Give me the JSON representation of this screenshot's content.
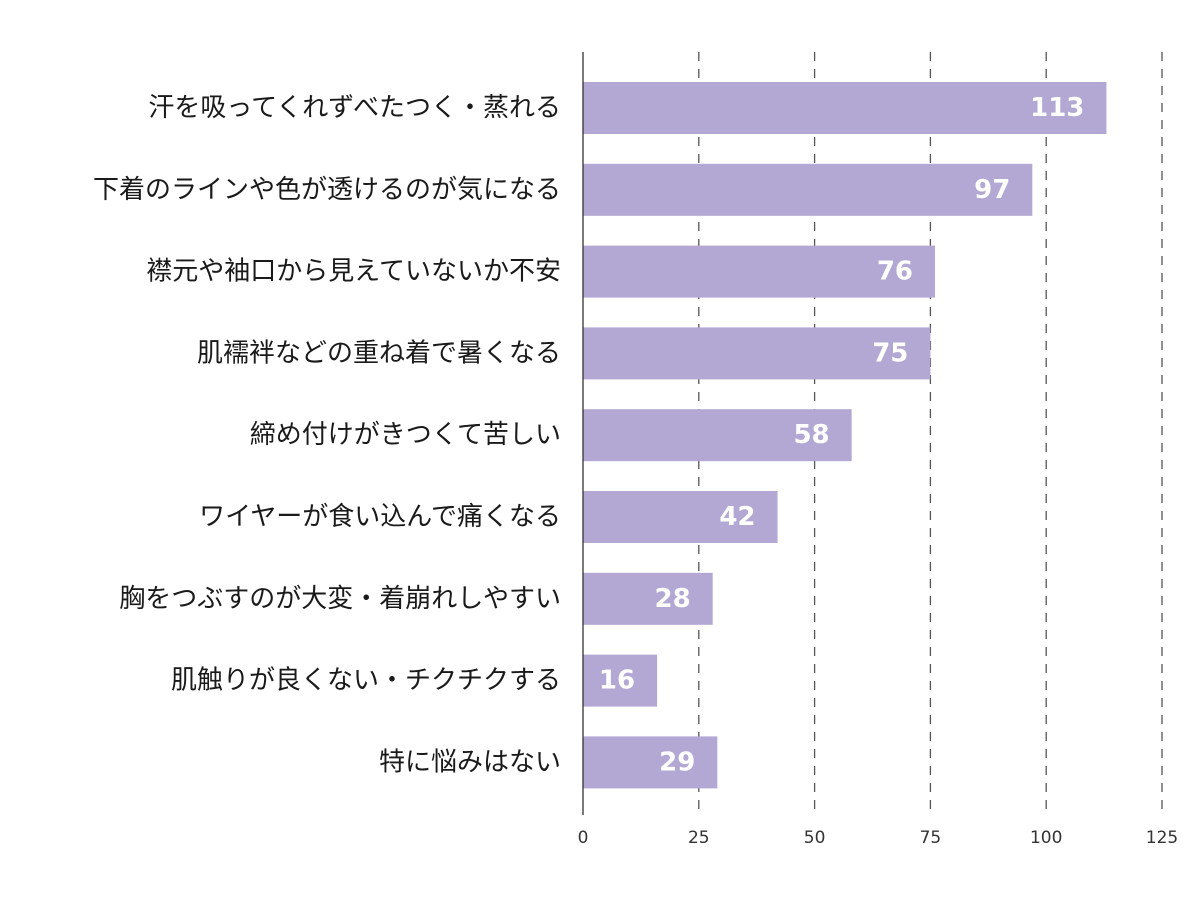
{
  "chart_data": {
    "type": "bar",
    "orientation": "horizontal",
    "categories": [
      "汗を吸ってくれずべたつく・蒸れる",
      "下着のラインや色が透けるのが気になる",
      "襟元や袖口から見えていないか不安",
      "肌襦袢などの重ね着で暑くなる",
      "締め付けがきつくて苦しい",
      "ワイヤーが食い込んで痛くなる",
      "胸をつぶすのが大変・着崩れしやすい",
      "肌触りが良くない・チクチクする",
      "特に悩みはない"
    ],
    "values": [
      113,
      97,
      76,
      75,
      58,
      42,
      28,
      16,
      29
    ],
    "xlim": [
      0,
      125
    ],
    "xticks": [
      0,
      25,
      50,
      75,
      100,
      125
    ],
    "grid": "vertical dashed",
    "bar_color": "#b3a7d4",
    "value_label_color": "#ffffff",
    "axis_color": "#333333",
    "grid_color": "#555555"
  }
}
